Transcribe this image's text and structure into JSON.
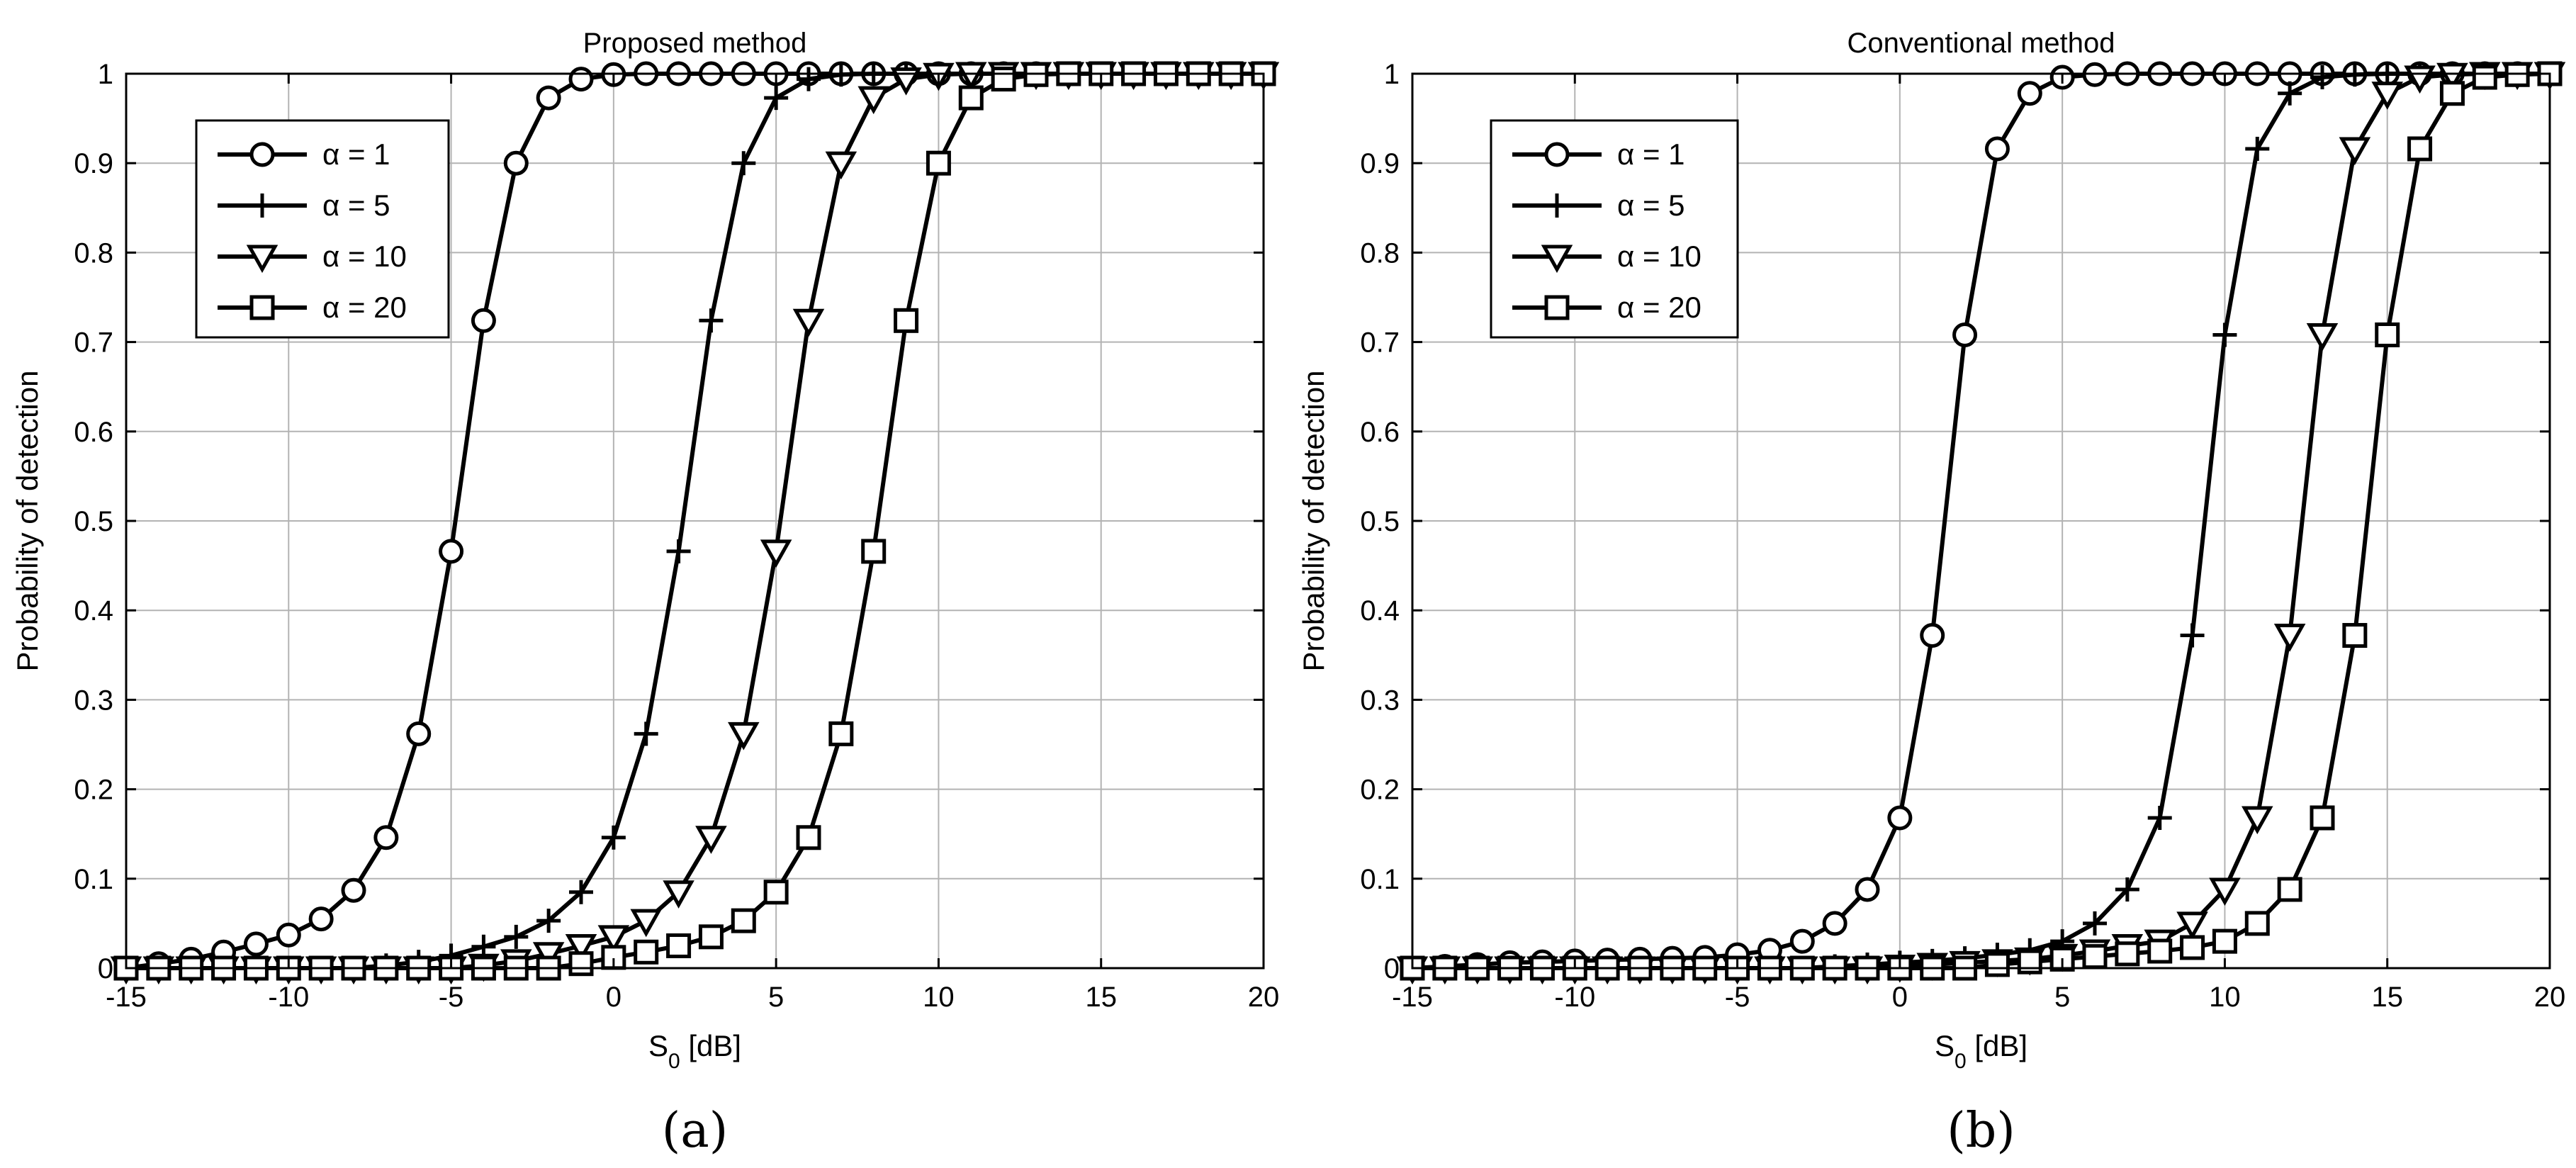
{
  "chart_data": [
    {
      "type": "line",
      "title": "Proposed method",
      "panel_label": "(a)",
      "xlabel_main": "S",
      "xlabel_sub": "0",
      "xlabel_unit": " [dB]",
      "ylabel": "Probability of detection",
      "xlim": [
        -15,
        20
      ],
      "ylim": [
        0,
        1
      ],
      "xticks": [
        -15,
        -10,
        -5,
        0,
        5,
        10,
        15,
        20
      ],
      "yticks": [
        0,
        0.1,
        0.2,
        0.3,
        0.4,
        0.5,
        0.6,
        0.7,
        0.8,
        0.9,
        1
      ],
      "grid": true,
      "legend_position": "top-left",
      "x": [
        -15,
        -14,
        -13,
        -12,
        -11,
        -10,
        -9,
        -8,
        -7,
        -6,
        -5,
        -4,
        -3,
        -2,
        -1,
        0,
        1,
        2,
        3,
        4,
        5,
        6,
        7,
        8,
        9,
        10,
        11,
        12,
        13,
        14,
        15,
        16,
        17,
        18,
        19,
        20
      ],
      "series": [
        {
          "name": "α = 1",
          "marker": "circle",
          "values": [
            0.0,
            0.005,
            0.01,
            0.018,
            0.027,
            0.037,
            0.055,
            0.087,
            0.146,
            0.262,
            0.466,
            0.724,
            0.9,
            0.973,
            0.994,
            0.999,
            1,
            1,
            1,
            1,
            1,
            1,
            1,
            1,
            1,
            1,
            1,
            1,
            1,
            1,
            1,
            1,
            1,
            1,
            1,
            1
          ]
        },
        {
          "name": "α = 5",
          "marker": "plus",
          "values": [
            0,
            0,
            0,
            0,
            0,
            0,
            0,
            0,
            0.003,
            0.007,
            0.014,
            0.024,
            0.035,
            0.053,
            0.085,
            0.146,
            0.262,
            0.466,
            0.724,
            0.9,
            0.973,
            0.994,
            0.999,
            1,
            1,
            1,
            1,
            1,
            1,
            1,
            1,
            1,
            1,
            1,
            1,
            1
          ]
        },
        {
          "name": "α = 10",
          "marker": "triangle",
          "values": [
            0,
            0,
            0,
            0,
            0,
            0,
            0,
            0,
            0,
            0,
            0,
            0.003,
            0.008,
            0.016,
            0.025,
            0.035,
            0.053,
            0.085,
            0.146,
            0.262,
            0.466,
            0.724,
            0.9,
            0.973,
            0.994,
            0.999,
            1,
            1,
            1,
            1,
            1,
            1,
            1,
            1,
            1,
            1
          ]
        },
        {
          "name": "α = 20",
          "marker": "square",
          "values": [
            0,
            0,
            0,
            0,
            0,
            0,
            0,
            0,
            0,
            0,
            0,
            0,
            0,
            0,
            0.005,
            0.012,
            0.018,
            0.025,
            0.035,
            0.053,
            0.085,
            0.146,
            0.262,
            0.466,
            0.724,
            0.9,
            0.973,
            0.994,
            0.999,
            1,
            1,
            1,
            1,
            1,
            1,
            1
          ]
        }
      ]
    },
    {
      "type": "line",
      "title": "Conventional method",
      "panel_label": "(b)",
      "xlabel_main": "S",
      "xlabel_sub": "0",
      "xlabel_unit": " [dB]",
      "ylabel": "Probability of detection",
      "xlim": [
        -15,
        20
      ],
      "ylim": [
        0,
        1
      ],
      "xticks": [
        -15,
        -10,
        -5,
        0,
        5,
        10,
        15,
        20
      ],
      "yticks": [
        0,
        0.1,
        0.2,
        0.3,
        0.4,
        0.5,
        0.6,
        0.7,
        0.8,
        0.9,
        1
      ],
      "grid": true,
      "legend_position": "top-left",
      "x": [
        -15,
        -14,
        -13,
        -12,
        -11,
        -10,
        -9,
        -8,
        -7,
        -6,
        -5,
        -4,
        -3,
        -2,
        -1,
        0,
        1,
        2,
        3,
        4,
        5,
        6,
        7,
        8,
        9,
        10,
        11,
        12,
        13,
        14,
        15,
        16,
        17,
        18,
        19,
        20
      ],
      "series": [
        {
          "name": "α = 1",
          "marker": "circle",
          "values": [
            0,
            0.002,
            0.004,
            0.006,
            0.007,
            0.008,
            0.009,
            0.01,
            0.011,
            0.012,
            0.015,
            0.02,
            0.03,
            0.05,
            0.088,
            0.168,
            0.372,
            0.708,
            0.916,
            0.978,
            0.996,
            0.999,
            1,
            1,
            1,
            1,
            1,
            1,
            1,
            1,
            1,
            1,
            1,
            1,
            1,
            1
          ]
        },
        {
          "name": "α = 5",
          "marker": "plus",
          "values": [
            0,
            0,
            0,
            0,
            0,
            0,
            0,
            0,
            0,
            0,
            0,
            0,
            0,
            0.002,
            0.004,
            0.006,
            0.008,
            0.011,
            0.015,
            0.02,
            0.03,
            0.05,
            0.088,
            0.168,
            0.372,
            0.708,
            0.916,
            0.978,
            0.996,
            0.999,
            1,
            1,
            1,
            1,
            1,
            1
          ]
        },
        {
          "name": "α = 10",
          "marker": "triangle",
          "values": [
            0,
            0,
            0,
            0,
            0,
            0,
            0,
            0,
            0,
            0,
            0,
            0,
            0,
            0,
            0,
            0.002,
            0.004,
            0.006,
            0.008,
            0.01,
            0.014,
            0.019,
            0.025,
            0.03,
            0.05,
            0.088,
            0.168,
            0.372,
            0.708,
            0.916,
            0.978,
            0.996,
            0.999,
            1,
            1,
            1
          ]
        },
        {
          "name": "α = 20",
          "marker": "square",
          "values": [
            0,
            0,
            0,
            0,
            0,
            0,
            0,
            0,
            0,
            0,
            0,
            0,
            0,
            0,
            0,
            0,
            0,
            0,
            0.004,
            0.007,
            0.01,
            0.013,
            0.016,
            0.019,
            0.023,
            0.03,
            0.05,
            0.088,
            0.168,
            0.372,
            0.708,
            0.916,
            0.978,
            0.996,
            0.999,
            1
          ]
        }
      ]
    }
  ]
}
